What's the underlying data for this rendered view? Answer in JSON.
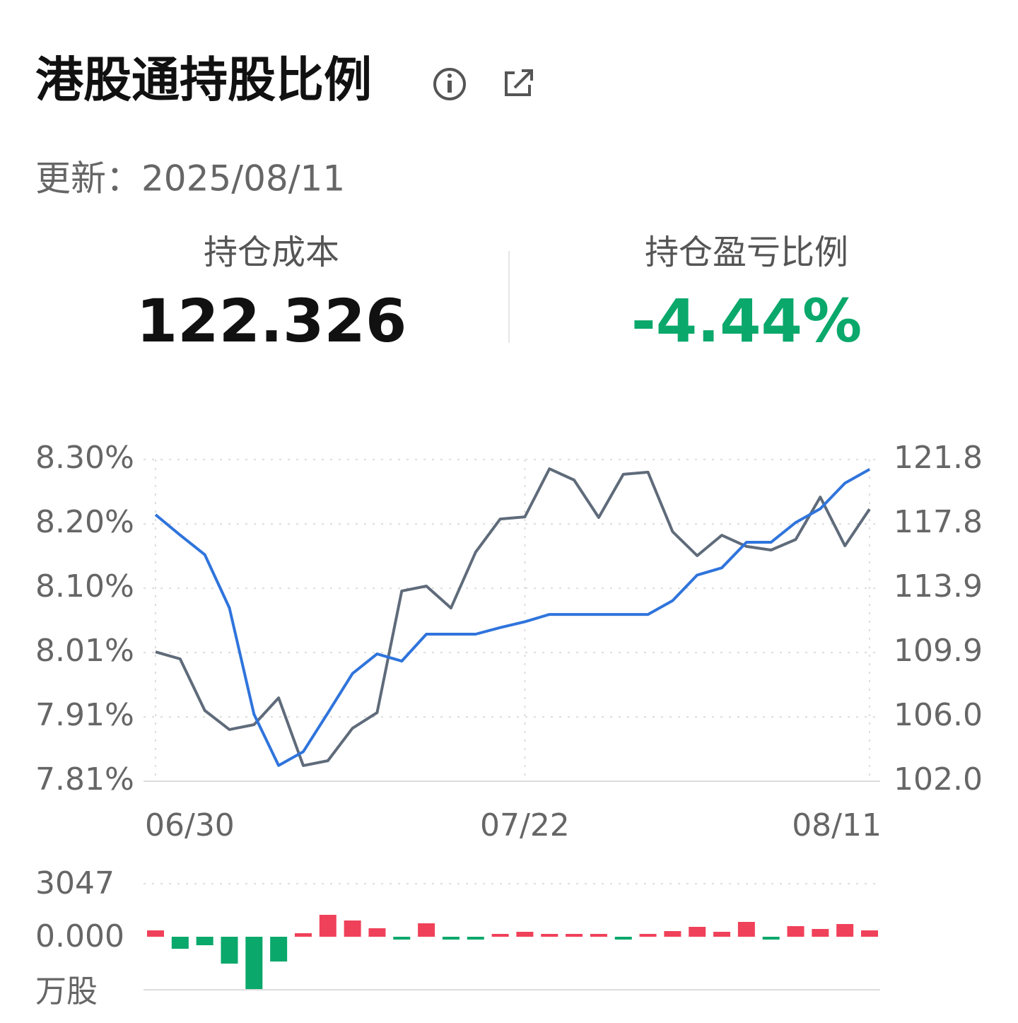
{
  "header": {
    "title": "港股通持股比例",
    "updated": "更新：2025/08/11"
  },
  "stats": [
    {
      "label": "持仓成本",
      "value": "122.326"
    },
    {
      "label": "持仓盈亏比例",
      "value": "-4.44%"
    }
  ],
  "chart_data": [
    {
      "type": "line",
      "categories": [
        "06/30",
        null,
        null,
        null,
        null,
        null,
        null,
        null,
        null,
        null,
        null,
        null,
        null,
        null,
        null,
        "07/22",
        null,
        null,
        null,
        null,
        null,
        null,
        null,
        null,
        null,
        null,
        null,
        null,
        null,
        "08/11"
      ],
      "series": [
        {
          "color": "#2f74dc",
          "axis": "y",
          "values": [
            8.216,
            8.185,
            8.155,
            8.074,
            7.912,
            7.834,
            7.855,
            7.914,
            7.974,
            8.004,
            7.993,
            8.034,
            8.034,
            8.034,
            8.044,
            8.053,
            8.064,
            8.064,
            8.064,
            8.064,
            8.064,
            8.085,
            8.124,
            8.135,
            8.174,
            8.174,
            8.204,
            8.225,
            8.264,
            8.285
          ]
        },
        {
          "color": "#5f6b7a",
          "axis": "y2",
          "values": [
            109.96,
            109.53,
            106.35,
            105.18,
            105.48,
            107.13,
            102.96,
            103.26,
            105.26,
            106.22,
            113.71,
            114.01,
            112.66,
            116.1,
            118.14,
            118.27,
            121.23,
            120.54,
            118.23,
            120.89,
            121.02,
            117.36,
            115.88,
            117.14,
            116.45,
            116.23,
            116.88,
            119.49,
            116.49,
            118.75
          ]
        }
      ],
      "ylim": [
        7.81,
        8.3
      ],
      "yticks": [
        {
          "value": 8.3,
          "label": "8.30%"
        },
        {
          "value": 8.202,
          "label": "8.20%"
        },
        {
          "value": 8.104,
          "label": "8.10%"
        },
        {
          "value": 8.006,
          "label": "8.01%"
        },
        {
          "value": 7.908,
          "label": "7.91%"
        },
        {
          "value": 7.81,
          "label": "7.81%"
        }
      ],
      "y2lim": [
        102.0,
        121.8
      ],
      "y2ticks": [
        {
          "value": 121.8,
          "label": "121.8"
        },
        {
          "value": 117.84,
          "label": "117.8"
        },
        {
          "value": 113.88,
          "label": "113.9"
        },
        {
          "value": 109.92,
          "label": "109.9"
        },
        {
          "value": 105.96,
          "label": "106.0"
        },
        {
          "value": 102,
          "label": "102.0"
        }
      ],
      "grid": true
    },
    {
      "type": "bar",
      "unit": "万股",
      "up_color": "#f0415a",
      "down_color": "#0aa86b",
      "values": [
        366,
        -690,
        -487,
        -1544,
        -3006,
        -1422,
        203,
        1260,
        934,
        488,
        -163,
        772,
        -163,
        -163,
        163,
        284,
        163,
        163,
        163,
        -163,
        163,
        325,
        569,
        284,
        853,
        -163,
        609,
        447,
        731,
        366
      ],
      "ylim": [
        -3047,
        3047
      ],
      "yticks": [
        3047,
        {
          "value": 0,
          "label": "0.000"
        }
      ],
      "grid": true
    }
  ]
}
